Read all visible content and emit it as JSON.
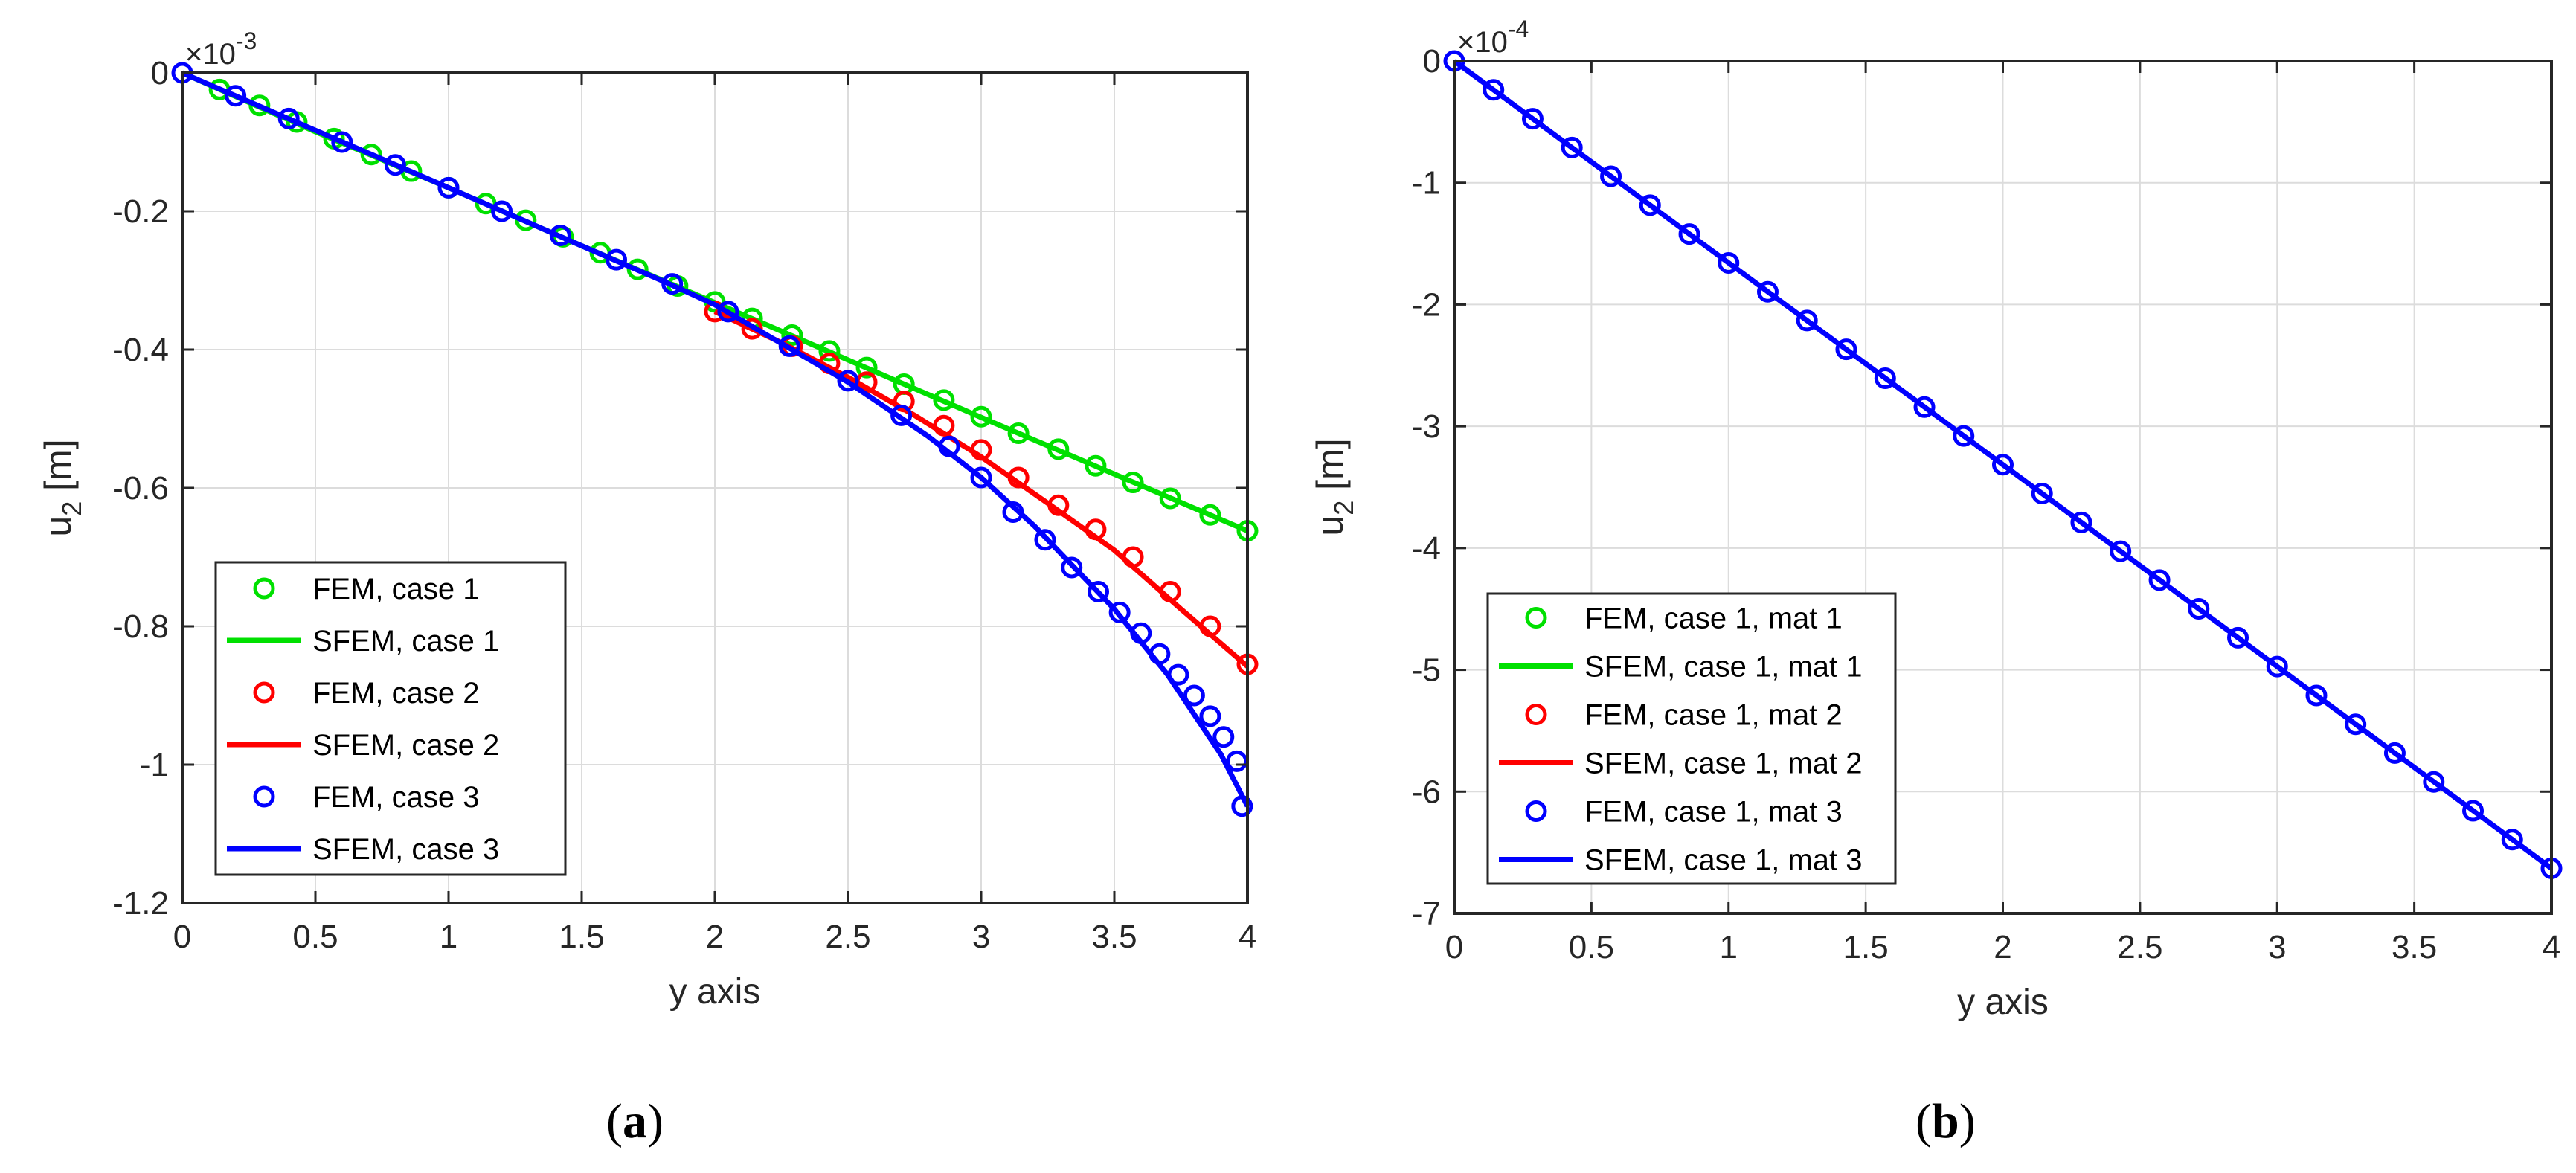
{
  "chart_data": [
    {
      "panel_label": "a",
      "type": "line",
      "title": "",
      "xlabel": "y axis",
      "ylabel_base": "u",
      "ylabel_sub": "2",
      "ylabel_unit": " [m]",
      "exponent_label": "×10",
      "exponent_power": "-3",
      "xlim": [
        0,
        4
      ],
      "ylim": [
        -1.2,
        0
      ],
      "x_ticks": [
        0,
        0.5,
        1,
        1.5,
        2,
        2.5,
        3,
        3.5,
        4
      ],
      "x_tick_labels": [
        "0",
        "0.5",
        "1",
        "1.5",
        "2",
        "2.5",
        "3",
        "3.5",
        "4"
      ],
      "y_ticks": [
        0,
        -0.2,
        -0.4,
        -0.6,
        -0.8,
        -1,
        -1.2
      ],
      "y_tick_labels": [
        "0",
        "-0.2",
        "-0.4",
        "-0.6",
        "-0.8",
        "-1",
        "-1.2"
      ],
      "grid": true,
      "legend_position": "bottom-left",
      "legend": [
        {
          "label": "FEM, case 1",
          "style": "marker",
          "color": "#00e000"
        },
        {
          "label": "SFEM, case 1",
          "style": "line",
          "color": "#00e000"
        },
        {
          "label": "FEM, case 2",
          "style": "marker",
          "color": "#ff0000"
        },
        {
          "label": "SFEM, case 2",
          "style": "line",
          "color": "#ff0000"
        },
        {
          "label": "FEM, case 3",
          "style": "marker",
          "color": "#0000ff"
        },
        {
          "label": "SFEM, case 3",
          "style": "line",
          "color": "#0000ff"
        }
      ],
      "series": [
        {
          "color": "#00e000",
          "kind": "line",
          "x": [
            0,
            0.5,
            1,
            1.5,
            2,
            2.5,
            3,
            3.5,
            4
          ],
          "y": [
            0,
            -0.085,
            -0.166,
            -0.25,
            -0.332,
            -0.415,
            -0.498,
            -0.58,
            -0.662
          ]
        },
        {
          "color": "#00e000",
          "kind": "markers",
          "x": [
            0.14,
            0.29,
            0.43,
            0.57,
            0.71,
            0.86,
            1.0,
            1.14,
            1.29,
            1.43,
            1.57,
            1.71,
            1.86,
            2.0,
            2.14,
            2.29,
            2.43,
            2.57,
            2.71,
            2.86,
            3.0,
            3.14,
            3.29,
            3.43,
            3.57,
            3.71,
            3.86,
            4.0
          ],
          "y": [
            -0.024,
            -0.047,
            -0.071,
            -0.095,
            -0.118,
            -0.142,
            -0.166,
            -0.189,
            -0.213,
            -0.237,
            -0.26,
            -0.284,
            -0.308,
            -0.331,
            -0.355,
            -0.379,
            -0.402,
            -0.426,
            -0.45,
            -0.473,
            -0.497,
            -0.521,
            -0.544,
            -0.568,
            -0.592,
            -0.615,
            -0.639,
            -0.662
          ]
        },
        {
          "color": "#ff0000",
          "kind": "line",
          "x": [
            2.0,
            2.25,
            2.5,
            2.75,
            3.0,
            3.25,
            3.5,
            3.75,
            4.0
          ],
          "y": [
            -0.345,
            -0.39,
            -0.44,
            -0.495,
            -0.555,
            -0.622,
            -0.69,
            -0.775,
            -0.858
          ]
        },
        {
          "color": "#ff0000",
          "kind": "markers",
          "x": [
            2.0,
            2.14,
            2.29,
            2.43,
            2.57,
            2.71,
            2.86,
            3.0,
            3.14,
            3.29,
            3.43,
            3.57,
            3.71,
            3.86,
            4.0
          ],
          "y": [
            -0.345,
            -0.37,
            -0.395,
            -0.42,
            -0.447,
            -0.475,
            -0.51,
            -0.545,
            -0.585,
            -0.625,
            -0.66,
            -0.7,
            -0.75,
            -0.8,
            -0.855
          ]
        },
        {
          "color": "#0000ff",
          "kind": "line",
          "x": [
            0,
            0.5,
            1,
            1.5,
            1.8,
            2.0,
            2.2,
            2.5,
            2.8,
            3.0,
            3.2,
            3.5,
            3.7,
            3.9,
            4.0
          ],
          "y": [
            0,
            -0.083,
            -0.166,
            -0.25,
            -0.3,
            -0.335,
            -0.38,
            -0.447,
            -0.525,
            -0.585,
            -0.655,
            -0.775,
            -0.87,
            -0.985,
            -1.06
          ]
        },
        {
          "color": "#0000ff",
          "kind": "markers",
          "x": [
            0,
            0.2,
            0.4,
            0.6,
            0.8,
            1.0,
            1.2,
            1.42,
            1.63,
            1.84,
            2.05,
            2.28,
            2.5,
            2.7,
            2.88,
            3.0,
            3.12,
            3.24,
            3.34,
            3.44,
            3.52,
            3.6,
            3.67,
            3.74,
            3.8,
            3.86,
            3.91,
            3.96,
            3.98
          ],
          "y": [
            0,
            -0.033,
            -0.066,
            -0.1,
            -0.133,
            -0.166,
            -0.2,
            -0.235,
            -0.27,
            -0.305,
            -0.345,
            -0.395,
            -0.445,
            -0.495,
            -0.54,
            -0.585,
            -0.635,
            -0.675,
            -0.715,
            -0.75,
            -0.78,
            -0.81,
            -0.84,
            -0.87,
            -0.9,
            -0.93,
            -0.96,
            -0.995,
            -1.06
          ]
        }
      ]
    },
    {
      "panel_label": "b",
      "type": "line",
      "title": "",
      "xlabel": "y axis",
      "ylabel_base": "u",
      "ylabel_sub": "2",
      "ylabel_unit": " [m]",
      "exponent_label": "×10",
      "exponent_power": "-4",
      "xlim": [
        0,
        4
      ],
      "ylim": [
        -7,
        0
      ],
      "x_ticks": [
        0,
        0.5,
        1,
        1.5,
        2,
        2.5,
        3,
        3.5,
        4
      ],
      "x_tick_labels": [
        "0",
        "0.5",
        "1",
        "1.5",
        "2",
        "2.5",
        "3",
        "3.5",
        "4"
      ],
      "y_ticks": [
        0,
        -1,
        -2,
        -3,
        -4,
        -5,
        -6,
        -7
      ],
      "y_tick_labels": [
        "0",
        "-1",
        "-2",
        "-3",
        "-4",
        "-5",
        "-6",
        "-7"
      ],
      "grid": true,
      "legend_position": "bottom-left",
      "legend": [
        {
          "label": "FEM, case 1, mat 1",
          "style": "marker",
          "color": "#00e000"
        },
        {
          "label": "SFEM, case 1, mat 1",
          "style": "line",
          "color": "#00e000"
        },
        {
          "label": "FEM, case 1, mat 2",
          "style": "marker",
          "color": "#ff0000"
        },
        {
          "label": "SFEM, case 1, mat 2",
          "style": "line",
          "color": "#ff0000"
        },
        {
          "label": "FEM, case 1, mat 3",
          "style": "marker",
          "color": "#0000ff"
        },
        {
          "label": "SFEM, case 1, mat 3",
          "style": "line",
          "color": "#0000ff"
        }
      ],
      "series": [
        {
          "color": "#0000ff",
          "kind": "line",
          "x": [
            0,
            4
          ],
          "y": [
            0,
            -6.63
          ]
        },
        {
          "color": "#0000ff",
          "kind": "markers",
          "x": [
            0,
            0.143,
            0.286,
            0.429,
            0.571,
            0.714,
            0.857,
            1.0,
            1.143,
            1.286,
            1.429,
            1.571,
            1.714,
            1.857,
            2.0,
            2.143,
            2.286,
            2.429,
            2.571,
            2.714,
            2.857,
            3.0,
            3.143,
            3.286,
            3.429,
            3.571,
            3.714,
            3.857,
            4.0
          ],
          "y": [
            0,
            -0.237,
            -0.474,
            -0.711,
            -0.947,
            -1.184,
            -1.421,
            -1.658,
            -1.895,
            -2.131,
            -2.368,
            -2.605,
            -2.842,
            -3.079,
            -3.315,
            -3.552,
            -3.789,
            -4.026,
            -4.263,
            -4.499,
            -4.736,
            -4.973,
            -5.21,
            -5.447,
            -5.683,
            -5.92,
            -6.157,
            -6.394,
            -6.63
          ]
        }
      ]
    }
  ]
}
